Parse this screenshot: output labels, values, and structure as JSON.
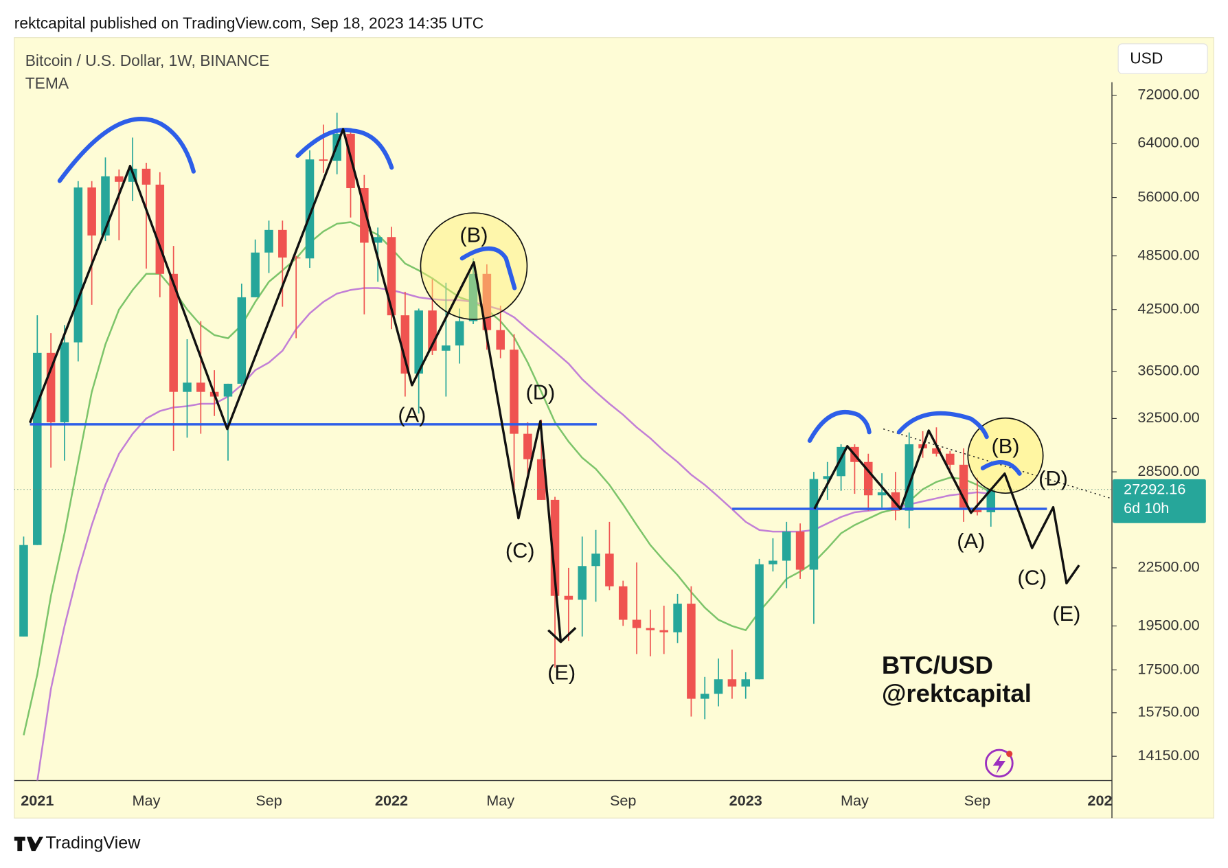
{
  "header": "rektcapital published on TradingView.com, Sep 18, 2023 14:35 UTC",
  "footer": "TradingView",
  "chart_data": {
    "type": "candlestick",
    "title": "Bitcoin / U.S. Dollar, 1W, BINANCE",
    "indicator": "TEMA",
    "currency": "USD",
    "countdown": "6d 10h",
    "yscale": "log",
    "grid": false,
    "up_color": "#26a69a",
    "down_color": "#ef5350",
    "categories": [
      null,
      "2021",
      null,
      null,
      null,
      null,
      null,
      null,
      null,
      "May",
      null,
      null,
      null,
      null,
      null,
      null,
      null,
      null,
      "Sep",
      null,
      null,
      null,
      null,
      null,
      null,
      null,
      null,
      "2022",
      null,
      null,
      null,
      null,
      null,
      null,
      null,
      "May",
      null,
      null,
      null,
      null,
      null,
      null,
      null,
      null,
      "Sep",
      null,
      null,
      null,
      null,
      null,
      null,
      null,
      null,
      "2023",
      null,
      null,
      null,
      null,
      null,
      null,
      null,
      "May",
      null,
      null,
      null,
      null,
      null,
      null,
      null,
      null,
      "Sep",
      null,
      null,
      null,
      null,
      null,
      null,
      null,
      null,
      "202"
    ],
    "open": [
      19000,
      23800,
      38200,
      32200,
      39200,
      57400,
      51000,
      59000,
      58200,
      60100,
      57800,
      46400,
      34700,
      35500,
      34700,
      34300,
      35400,
      43800,
      48900,
      51700,
      48300,
      48200,
      61500,
      61300,
      65500,
      57300,
      50100,
      50800,
      41900,
      36300,
      42400,
      38400,
      38900,
      41300,
      46400,
      40400,
      38500,
      31300,
      29400,
      26600,
      21000,
      20800,
      22600,
      23300,
      21500,
      19800,
      19400,
      19300,
      19200,
      20600,
      16300,
      16500,
      17100,
      16800,
      17100,
      22700,
      22900,
      24600,
      22400,
      28000,
      28200,
      30300,
      29200,
      26900,
      27100,
      25900,
      30500,
      30200,
      29800,
      29000,
      26100,
      25800,
      null,
      null,
      null,
      null,
      null,
      null,
      null,
      null
    ],
    "high": [
      24300,
      41900,
      40100,
      40900,
      58300,
      58300,
      61800,
      60000,
      64900,
      61000,
      59600,
      49700,
      39500,
      41300,
      36600,
      35400,
      45300,
      50500,
      52900,
      52900,
      48500,
      62900,
      67000,
      69000,
      66300,
      59200,
      52000,
      52100,
      44400,
      42600,
      45800,
      45400,
      42600,
      48200,
      47500,
      42900,
      40000,
      32200,
      32400,
      26800,
      22500,
      24300,
      24700,
      25200,
      21800,
      22800,
      20300,
      20500,
      21100,
      21500,
      17200,
      18000,
      18400,
      17400,
      23000,
      24200,
      25200,
      25100,
      28500,
      29200,
      30500,
      30500,
      29800,
      28400,
      28500,
      31400,
      31500,
      31800,
      30000,
      30200,
      28100,
      27400,
      null,
      null,
      null,
      null,
      null,
      null,
      null,
      null
    ],
    "low": [
      19000,
      23800,
      28800,
      29300,
      37400,
      43000,
      50300,
      50400,
      55500,
      47000,
      43800,
      30000,
      31000,
      31300,
      32700,
      29300,
      35200,
      43800,
      46500,
      42800,
      39600,
      47100,
      59500,
      59300,
      53300,
      42000,
      45500,
      40500,
      34300,
      32900,
      38000,
      34300,
      37200,
      41000,
      38500,
      37700,
      26700,
      28000,
      26600,
      17600,
      18800,
      19000,
      20700,
      21300,
      19500,
      18200,
      18100,
      18200,
      18700,
      15600,
      15500,
      16000,
      16300,
      16300,
      17100,
      22300,
      21400,
      21900,
      19600,
      26600,
      27200,
      27000,
      25900,
      26100,
      25300,
      24800,
      29500,
      29600,
      28600,
      25200,
      25600,
      24900,
      null,
      null,
      null,
      null,
      null,
      null,
      null,
      null
    ],
    "close": [
      23800,
      38200,
      32200,
      39200,
      57400,
      51000,
      59000,
      58200,
      60100,
      57800,
      46400,
      34700,
      35500,
      34700,
      34300,
      35400,
      43800,
      48900,
      51700,
      48300,
      48200,
      61500,
      61300,
      65500,
      57300,
      50100,
      50800,
      41900,
      36300,
      42400,
      38400,
      38900,
      41300,
      46400,
      40400,
      38500,
      31300,
      29400,
      26600,
      21000,
      20800,
      22600,
      23300,
      21500,
      19800,
      19400,
      19300,
      19200,
      20600,
      16300,
      16500,
      17100,
      16800,
      17100,
      22700,
      22900,
      24600,
      22400,
      28000,
      28200,
      30300,
      29200,
      26900,
      27100,
      25900,
      30500,
      30200,
      29800,
      29000,
      26100,
      25800,
      27292.16,
      null,
      null,
      null,
      null,
      null,
      null,
      null,
      null
    ],
    "overlays": [
      {
        "color": "#7cc46a",
        "values": [
          14900,
          17300,
          21000,
          24500,
          29200,
          34700,
          39000,
          42500,
          44600,
          46400,
          46400,
          44600,
          42500,
          40900,
          39900,
          39600,
          40900,
          43300,
          45500,
          46800,
          48200,
          50100,
          51500,
          52500,
          52700,
          51900,
          51100,
          49400,
          47600,
          46800,
          45900,
          44800,
          43800,
          43300,
          42500,
          41300,
          39700,
          37300,
          34700,
          32200,
          30700,
          29500,
          28700,
          27600,
          26300,
          25000,
          23800,
          22900,
          22100,
          21200,
          20400,
          19800,
          19500,
          19300,
          20200,
          21000,
          21900,
          22300,
          22800,
          23600,
          24500,
          25000,
          25400,
          25800,
          26000,
          26500,
          27300,
          27800,
          28100,
          28000,
          27600,
          27100,
          null,
          null,
          null,
          null,
          null,
          null,
          null,
          null
        ]
      },
      {
        "color": "#c27fd6",
        "values": [
          null,
          13300,
          16700,
          19500,
          22300,
          25000,
          27600,
          29800,
          31300,
          32500,
          33100,
          33400,
          33500,
          33700,
          33700,
          34300,
          35300,
          36600,
          37300,
          38400,
          40500,
          42100,
          43300,
          44200,
          44600,
          44800,
          44800,
          44600,
          44200,
          43800,
          43600,
          43500,
          43500,
          43300,
          42900,
          42500,
          41700,
          40500,
          39400,
          38300,
          37200,
          35800,
          34700,
          33700,
          32800,
          31800,
          30960,
          30000,
          29200,
          28300,
          27600,
          26800,
          26000,
          25200,
          24700,
          24600,
          24600,
          24600,
          24700,
          25100,
          25500,
          25800,
          25900,
          26000,
          26100,
          26300,
          26500,
          26700,
          26900,
          27000,
          27100,
          27000,
          null,
          null,
          null,
          null,
          null,
          null,
          null,
          null
        ]
      }
    ],
    "ylim": [
      13330,
      75100
    ],
    "yticks": [
      {
        "value": 72000,
        "label": "72000.00"
      },
      {
        "value": 64000,
        "label": "64000.00"
      },
      {
        "value": 56000,
        "label": "56000.00"
      },
      {
        "value": 48500,
        "label": "48500.00"
      },
      {
        "value": 42500,
        "label": "42500.00"
      },
      {
        "value": 36500,
        "label": "36500.00"
      },
      {
        "value": 32500,
        "label": "32500.00"
      },
      {
        "value": 28500,
        "label": "28500.00"
      },
      {
        "value": 22500,
        "label": "22500.00"
      },
      {
        "value": 19500,
        "label": "19500.00"
      },
      {
        "value": 17500,
        "label": "17500.00"
      },
      {
        "value": 15750,
        "label": "15750.00"
      },
      {
        "value": 14150,
        "label": "14150.00"
      }
    ],
    "annotations": [
      "(B)",
      "(A)",
      "(D)",
      "(C)",
      "(E)",
      "(B)",
      "(A)",
      "(D)",
      "(C)",
      "(E)"
    ],
    "watermark": [
      "BTC/USD",
      "@rektcapital"
    ]
  }
}
